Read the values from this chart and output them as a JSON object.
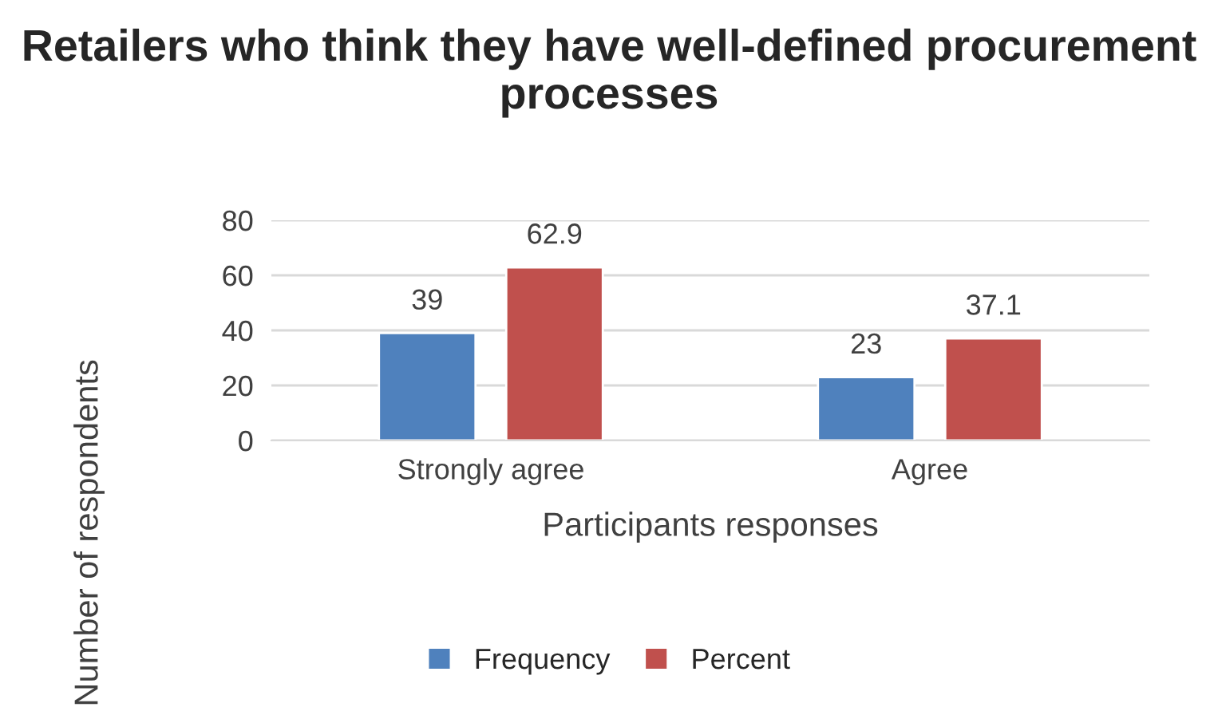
{
  "chart_data": {
    "type": "bar",
    "title": "Retailers who think they have well-defined procurement processes",
    "xlabel": "Participants responses",
    "ylabel": "Number of respondents",
    "categories": [
      "Strongly agree",
      "Agree"
    ],
    "series": [
      {
        "name": "Frequency",
        "color": "#4f81bd",
        "values": [
          39,
          23
        ]
      },
      {
        "name": "Percent",
        "color": "#c0504d",
        "values": [
          62.9,
          37.1
        ]
      }
    ],
    "ylim": [
      0,
      80
    ],
    "yticks": [
      0,
      20,
      40,
      60,
      80
    ],
    "grid": "y",
    "legend": "bottom",
    "data_labels": true
  }
}
